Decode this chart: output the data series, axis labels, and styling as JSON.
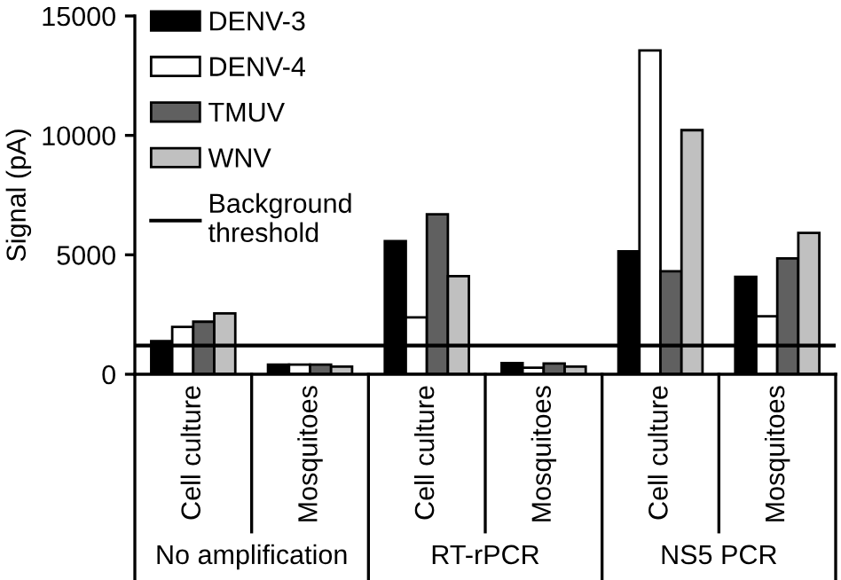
{
  "chart_data": {
    "type": "bar",
    "ylabel": "Signal (pA)",
    "categories": [
      "Cell culture",
      "Mosquitoes",
      "Cell culture",
      "Mosquitoes",
      "Cell culture",
      "Mosquitoes"
    ],
    "series": [
      {
        "name": "DENV-3",
        "color": "#000000",
        "values": [
          1390,
          400,
          5570,
          470,
          5150,
          4080
        ]
      },
      {
        "name": "DENV-4",
        "color": "#ffffff",
        "values": [
          1980,
          400,
          2380,
          270,
          13560,
          2430
        ]
      },
      {
        "name": "TMUV",
        "color": "#606060",
        "values": [
          2200,
          400,
          6700,
          450,
          4310,
          4850
        ]
      },
      {
        "name": "WNV",
        "color": "#c0c0c0",
        "values": [
          2550,
          320,
          4110,
          320,
          10220,
          5920
        ]
      }
    ],
    "ref_lines": [
      {
        "axis": "y",
        "value": 1200,
        "label": "Background\nthreshold",
        "color": "#000000"
      }
    ],
    "annotations": [
      "No amplification",
      "RT-rPCR",
      "NS5 PCR"
    ],
    "ylim": [
      0,
      15000
    ],
    "yticks": [
      0,
      5000,
      10000,
      15000
    ],
    "grid": false,
    "legend": "top left"
  }
}
